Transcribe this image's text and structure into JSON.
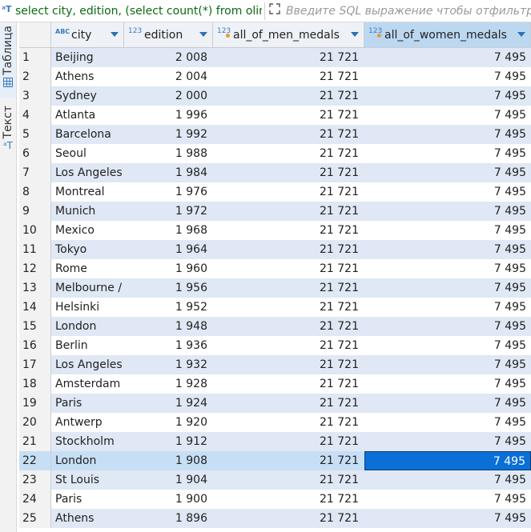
{
  "toolbar": {
    "sql_icon": "sql-query-icon",
    "sql_text": "select city, edition, (select count(*) from olimp",
    "expand_icon": "expand-icon",
    "filter_placeholder": "Введите SQL выражение чтобы отфильтровать"
  },
  "side_tabs": {
    "table_label": "Таблица",
    "text_label": "Текст"
  },
  "columns": [
    {
      "type": "ABC",
      "name": "city"
    },
    {
      "type": "123",
      "name": "edition"
    },
    {
      "type": "123",
      "name": "all_of_men_medals"
    },
    {
      "type": "123",
      "name": "all_of_women_medals"
    }
  ],
  "rows": [
    {
      "n": "1",
      "city": "Beijing",
      "edition": "2 008",
      "men": "21 721",
      "women": "7 495"
    },
    {
      "n": "2",
      "city": "Athens",
      "edition": "2 004",
      "men": "21 721",
      "women": "7 495"
    },
    {
      "n": "3",
      "city": "Sydney",
      "edition": "2 000",
      "men": "21 721",
      "women": "7 495"
    },
    {
      "n": "4",
      "city": "Atlanta",
      "edition": "1 996",
      "men": "21 721",
      "women": "7 495"
    },
    {
      "n": "5",
      "city": "Barcelona",
      "edition": "1 992",
      "men": "21 721",
      "women": "7 495"
    },
    {
      "n": "6",
      "city": "Seoul",
      "edition": "1 988",
      "men": "21 721",
      "women": "7 495"
    },
    {
      "n": "7",
      "city": "Los Angeles",
      "edition": "1 984",
      "men": "21 721",
      "women": "7 495"
    },
    {
      "n": "8",
      "city": "Montreal",
      "edition": "1 976",
      "men": "21 721",
      "women": "7 495"
    },
    {
      "n": "9",
      "city": "Munich",
      "edition": "1 972",
      "men": "21 721",
      "women": "7 495"
    },
    {
      "n": "10",
      "city": "Mexico",
      "edition": "1 968",
      "men": "21 721",
      "women": "7 495"
    },
    {
      "n": "11",
      "city": "Tokyo",
      "edition": "1 964",
      "men": "21 721",
      "women": "7 495"
    },
    {
      "n": "12",
      "city": "Rome",
      "edition": "1 960",
      "men": "21 721",
      "women": "7 495"
    },
    {
      "n": "13",
      "city": "Melbourne /",
      "edition": "1 956",
      "men": "21 721",
      "women": "7 495"
    },
    {
      "n": "14",
      "city": "Helsinki",
      "edition": "1 952",
      "men": "21 721",
      "women": "7 495"
    },
    {
      "n": "15",
      "city": "London",
      "edition": "1 948",
      "men": "21 721",
      "women": "7 495"
    },
    {
      "n": "16",
      "city": "Berlin",
      "edition": "1 936",
      "men": "21 721",
      "women": "7 495"
    },
    {
      "n": "17",
      "city": "Los Angeles",
      "edition": "1 932",
      "men": "21 721",
      "women": "7 495"
    },
    {
      "n": "18",
      "city": "Amsterdam",
      "edition": "1 928",
      "men": "21 721",
      "women": "7 495"
    },
    {
      "n": "19",
      "city": "Paris",
      "edition": "1 924",
      "men": "21 721",
      "women": "7 495"
    },
    {
      "n": "20",
      "city": "Antwerp",
      "edition": "1 920",
      "men": "21 721",
      "women": "7 495"
    },
    {
      "n": "21",
      "city": "Stockholm",
      "edition": "1 912",
      "men": "21 721",
      "women": "7 495"
    },
    {
      "n": "22",
      "city": "London",
      "edition": "1 908",
      "men": "21 721",
      "women": "7 495"
    },
    {
      "n": "23",
      "city": "St Louis",
      "edition": "1 904",
      "men": "21 721",
      "women": "7 495"
    },
    {
      "n": "24",
      "city": "Paris",
      "edition": "1 900",
      "men": "21 721",
      "women": "7 495"
    },
    {
      "n": "25",
      "city": "Athens",
      "edition": "1 896",
      "men": "21 721",
      "women": "7 495"
    }
  ],
  "selection": {
    "row": "22",
    "column": "all_of_women_medals"
  },
  "colors": {
    "accent": "#0a6fd6",
    "alt_row": "#dfe8f4",
    "sql_text": "#0b6a12"
  }
}
